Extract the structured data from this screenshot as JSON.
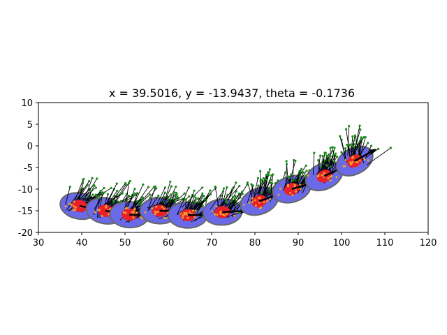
{
  "chart_data": {
    "type": "scatter",
    "title": "x = 39.5016, y = -13.9437, theta = -0.1736",
    "xlabel": "",
    "ylabel": "",
    "xlim": [
      30,
      120
    ],
    "ylim": [
      -20,
      10
    ],
    "x_ticks": [
      30,
      40,
      50,
      60,
      70,
      80,
      90,
      100,
      110,
      120
    ],
    "y_ticks": [
      10,
      5,
      0,
      -5,
      -10,
      -15,
      -20
    ],
    "grid": false,
    "colors": {
      "outer_ellipse": "#6a6ae8",
      "outer_edge": "#666666",
      "inner_ellipse": "#e8202a",
      "particle_dot": "#1a8a1a",
      "landmark_dot": "#f0a030",
      "heading_line": "#000000"
    },
    "poses": [
      {
        "x": 39.5,
        "y": -13.9,
        "theta": -0.1736
      },
      {
        "x": 45.5,
        "y": -15.0,
        "theta": -0.15
      },
      {
        "x": 51.0,
        "y": -15.9,
        "theta": -0.05
      },
      {
        "x": 58.0,
        "y": -15.0,
        "theta": -0.02
      },
      {
        "x": 64.5,
        "y": -16.0,
        "theta": 0.0
      },
      {
        "x": 72.5,
        "y": -15.3,
        "theta": 0.05
      },
      {
        "x": 81.0,
        "y": -12.8,
        "theta": 0.35
      },
      {
        "x": 88.5,
        "y": -10.0,
        "theta": 0.3
      },
      {
        "x": 96.0,
        "y": -7.0,
        "theta": 0.45
      },
      {
        "x": 103.0,
        "y": -3.5,
        "theta": 0.5
      }
    ]
  }
}
